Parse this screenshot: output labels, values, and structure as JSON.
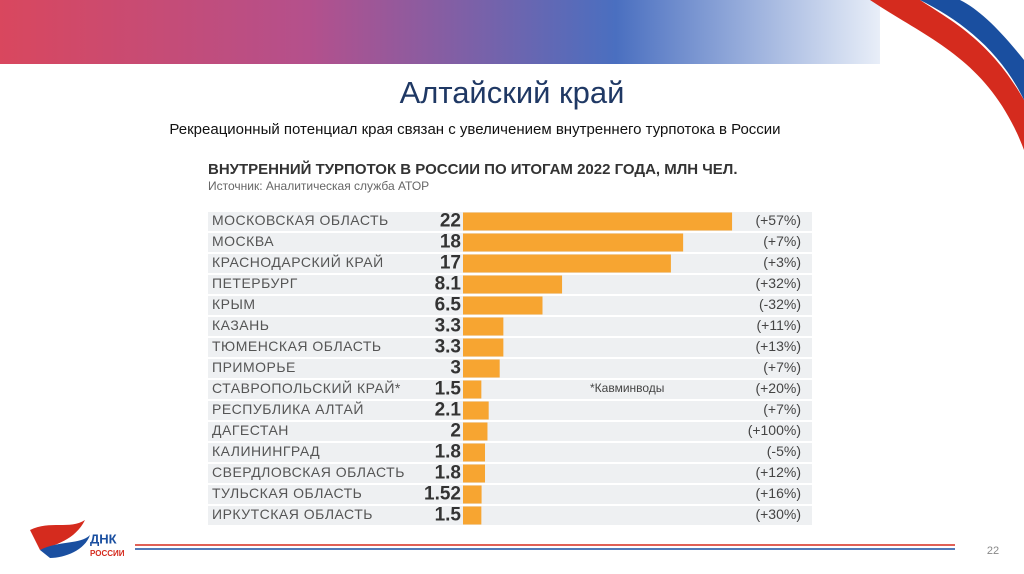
{
  "header": {
    "title": "Алтайский край",
    "subtitle": "Рекреационный потенциал края связан с увеличением внутреннего турпотока в России"
  },
  "chart_data": {
    "type": "bar",
    "orientation": "horizontal",
    "title": "ВНУТРЕННИЙ ТУРПОТОК В РОССИИ ПО ИТОГАМ 2022 ГОДА, МЛН ЧЕЛ.",
    "subtitle": "Источник: Аналитическая служба АТОР",
    "categories": [
      "МОСКОВСКАЯ ОБЛАСТЬ",
      "МОСКВА",
      "КРАСНОДАРСКИЙ КРАЙ",
      "ПЕТЕРБУРГ",
      "КРЫМ",
      "КАЗАНЬ",
      "ТЮМЕНСКАЯ ОБЛАСТЬ",
      "ПРИМОРЬЕ",
      "СТАВРОПОЛЬСКИЙ КРАЙ*",
      "РЕСПУБЛИКА АЛТАЙ",
      "ДАГЕСТАН",
      "КАЛИНИНГРАД",
      "СВЕРДЛОВСКАЯ ОБЛАСТЬ",
      "ТУЛЬСКАЯ ОБЛАСТЬ",
      "ИРКУТСКАЯ ОБЛАСТЬ"
    ],
    "values": [
      22,
      18,
      17,
      8.1,
      6.5,
      3.3,
      3.3,
      3,
      1.5,
      2.1,
      2,
      1.8,
      1.8,
      1.52,
      1.5
    ],
    "changes": [
      "(+57%)",
      "(+7%)",
      "(+3%)",
      "(+32%)",
      "(-32%)",
      "(+11%)",
      "(+13%)",
      "(+7%)",
      "(+20%)",
      "(+7%)",
      "(+100%)",
      "(-5%)",
      "(+12%)",
      "(+16%)",
      "(+30%)"
    ],
    "annotation": "*Кавминводы",
    "color": "#f7a531"
  },
  "footer": {
    "logo": "ДНК",
    "logo_sub": "РОССИИ",
    "page_number": "22"
  }
}
